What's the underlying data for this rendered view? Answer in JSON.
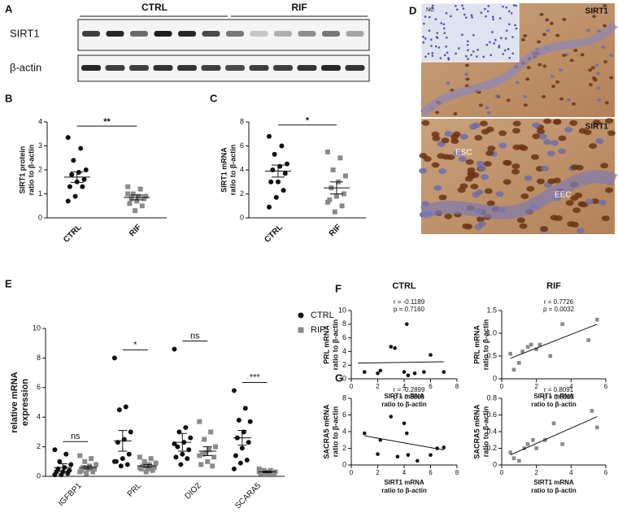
{
  "panels": [
    "A",
    "B",
    "C",
    "D",
    "E",
    "F",
    "G"
  ],
  "blot": {
    "groups": [
      "CTRL",
      "RIF"
    ],
    "rows": [
      "SIRT1",
      "β-actin"
    ]
  },
  "histology": {
    "top": {
      "inset": "NC",
      "label": "SIRT1"
    },
    "bottom": {
      "label": "SIRT1",
      "annotations": [
        "ESC",
        "EEC"
      ]
    }
  },
  "chart_data": [
    {
      "type": "dotplot",
      "ylabel": [
        "SIRT1 protein",
        "ratio to β-actin"
      ],
      "categories": [
        "CTRL",
        "RIF"
      ],
      "colors": [
        "#111111",
        "#8a8a8a"
      ],
      "markers": [
        "circle",
        "square"
      ],
      "values": [
        [
          3.35,
          2.9,
          2.4,
          2.0,
          1.9,
          1.8,
          1.6,
          1.5,
          1.3,
          1.3,
          0.9,
          0.7
        ],
        [
          1.3,
          1.2,
          1.0,
          0.9,
          0.9,
          0.8,
          0.8,
          0.7,
          0.6,
          0.5,
          0.3,
          1.0
        ]
      ],
      "mean": [
        1.7,
        0.85
      ],
      "sem": [
        0.22,
        0.1
      ],
      "significance": "**",
      "ylim": [
        0,
        4
      ],
      "yticks": [
        0,
        1,
        2,
        3,
        4
      ]
    },
    {
      "type": "dotplot",
      "ylabel": [
        "SIRT1 mRNA",
        "ratio to β-actin"
      ],
      "categories": [
        "CTRL",
        "RIF"
      ],
      "colors": [
        "#111111",
        "#8a8a8a"
      ],
      "markers": [
        "circle",
        "square"
      ],
      "values": [
        [
          6.8,
          6.0,
          5.3,
          4.5,
          4.3,
          4.0,
          3.7,
          3.0,
          3.0,
          2.3,
          1.7,
          0.9
        ],
        [
          5.5,
          5.0,
          4.0,
          3.5,
          3.0,
          2.5,
          2.0,
          1.8,
          1.5,
          1.0,
          0.5,
          1.3
        ]
      ],
      "mean": [
        3.9,
        2.5
      ],
      "sem": [
        0.5,
        0.5
      ],
      "significance": "*",
      "ylim": [
        0,
        8
      ],
      "yticks": [
        0,
        2,
        4,
        6,
        8
      ]
    },
    {
      "type": "grouped_dotplot",
      "ylabel": [
        "relative mRNA",
        "expression"
      ],
      "categories": [
        "IGFBP1",
        "PRL",
        "DIO2",
        "SCARA5"
      ],
      "significance": [
        "ns",
        "*",
        "ns",
        "***"
      ],
      "legend": "right",
      "series": [
        {
          "name": "CTRL",
          "color": "#111111",
          "marker": "circle",
          "values": [
            [
              1.8,
              1.5,
              1.0,
              0.8,
              0.6,
              0.5,
              0.4,
              0.3,
              0.3,
              0.2,
              0.1,
              0.1
            ],
            [
              8.0,
              4.7,
              4.5,
              3.0,
              2.5,
              2.3,
              1.5,
              1.2,
              1.0,
              0.8,
              0.7,
              1.0
            ],
            [
              8.6,
              3.3,
              3.0,
              2.6,
              2.3,
              2.0,
              1.8,
              1.5,
              1.3,
              1.2,
              0.8,
              2.2
            ],
            [
              5.8,
              4.6,
              3.8,
              3.7,
              3.0,
              2.6,
              2.3,
              1.9,
              1.4,
              1.1,
              0.9,
              0.5
            ]
          ],
          "mean": [
            0.6,
            2.4,
            2.3,
            2.6
          ],
          "sem": [
            0.25,
            0.7,
            0.6,
            0.5
          ]
        },
        {
          "name": "RIF",
          "color": "#8a8a8a",
          "marker": "square",
          "values": [
            [
              1.4,
              1.2,
              1.0,
              0.8,
              0.7,
              0.6,
              0.5,
              0.5,
              0.4,
              0.3,
              0.2,
              0.3
            ],
            [
              1.3,
              1.2,
              1.0,
              0.9,
              0.8,
              0.7,
              0.6,
              0.5,
              0.5,
              0.4,
              0.3,
              0.6
            ],
            [
              3.7,
              3.0,
              2.5,
              2.0,
              1.8,
              1.5,
              1.3,
              1.0,
              0.8,
              0.7,
              1.6,
              1.4
            ],
            [
              0.5,
              0.4,
              0.4,
              0.3,
              0.3,
              0.3,
              0.2,
              0.2,
              0.2,
              0.1,
              0.1,
              0.3
            ]
          ],
          "mean": [
            0.6,
            0.7,
            1.7,
            0.3
          ],
          "sem": [
            0.1,
            0.1,
            0.3,
            0.05
          ]
        }
      ],
      "ylim": [
        0,
        10
      ],
      "yticks": [
        0,
        2,
        4,
        6,
        8,
        10
      ]
    },
    {
      "type": "scatter",
      "title": "CTRL",
      "xlabel": [
        "SIRT1 mRNA",
        "ratio to β-actin"
      ],
      "ylabel": [
        "PRL mRNA",
        "ratio to β-actin"
      ],
      "annotations": [
        "r = -0.1189",
        "p = 0.7160"
      ],
      "color": "#111111",
      "marker": "circle",
      "x": [
        1,
        2,
        2.2,
        3,
        3.3,
        4,
        4.2,
        4.3,
        4.8,
        5.5,
        6,
        7
      ],
      "values": [
        1,
        0.8,
        1.2,
        4.7,
        4.5,
        1,
        8,
        0.5,
        0.8,
        1,
        3.5,
        1
      ],
      "trendline": {
        "x": [
          0.5,
          7
        ],
        "y": [
          2.3,
          2.5
        ]
      },
      "xlim": [
        0,
        8
      ],
      "xticks": [
        0,
        2,
        4,
        6,
        8
      ],
      "ylim": [
        0,
        10
      ],
      "yticks": [
        0,
        2,
        4,
        6,
        8,
        10
      ]
    },
    {
      "type": "scatter",
      "title": "RIF",
      "xlabel": [
        "SIRT1 mRNA",
        "ratio to β-actin"
      ],
      "ylabel": [
        "PRL mRNA",
        "ratio to β-actin"
      ],
      "annotations": [
        "r = 0.7726",
        "p = 0.0032"
      ],
      "color": "#8a8a8a",
      "marker": "square",
      "x": [
        0.5,
        0.7,
        1,
        1.2,
        1.5,
        1.7,
        2,
        2.2,
        2.8,
        3.5,
        5,
        5.5
      ],
      "values": [
        0.55,
        0.2,
        0.35,
        0.6,
        0.7,
        0.75,
        0.65,
        0.75,
        0.5,
        1.2,
        0.85,
        1.3
      ],
      "trendline": {
        "x": [
          0.5,
          5.5
        ],
        "y": [
          0.45,
          1.2
        ]
      },
      "xlim": [
        0,
        6
      ],
      "xticks": [
        0,
        2,
        4,
        6
      ],
      "ylim": [
        0,
        1.5
      ],
      "yticks": [
        0,
        0.5,
        {
          "value": 1,
          "label": "1.0"
        },
        1.5
      ]
    },
    {
      "type": "scatter",
      "xlabel": [
        "SIRT1 mRNA",
        "ratio to β-actin"
      ],
      "ylabel": [
        "SACRA5 mRNA",
        "ratio to β-actin"
      ],
      "annotations": [
        "r = -0.2899",
        "p = 0.3608"
      ],
      "color": "#111111",
      "marker": "circle",
      "x": [
        1,
        2,
        2.2,
        3,
        3.5,
        4,
        4.2,
        4.3,
        5,
        6,
        6.5,
        7
      ],
      "values": [
        3.8,
        1.3,
        3,
        5.8,
        1,
        5,
        3.8,
        1.2,
        0.5,
        1.2,
        2,
        2.1
      ],
      "trendline": {
        "x": [
          1,
          7
        ],
        "y": [
          3.5,
          1.8
        ]
      },
      "xlim": [
        0,
        8
      ],
      "xticks": [
        0,
        2,
        4,
        6,
        8
      ],
      "ylim": [
        0,
        8
      ],
      "yticks": [
        0,
        2,
        4,
        6,
        8
      ]
    },
    {
      "type": "scatter",
      "xlabel": [
        "SIRT1 mRNA",
        "ratio to β-actin"
      ],
      "ylabel": [
        "SACRA5 mRNA",
        "ratio to β-actin"
      ],
      "annotations": [
        "r = 0.8091",
        "p = 0.0022"
      ],
      "color": "#8a8a8a",
      "marker": "square",
      "x": [
        0.5,
        0.7,
        1,
        1.3,
        1.5,
        1.8,
        2,
        2.5,
        3,
        3.5,
        5.2,
        5.5
      ],
      "values": [
        0.15,
        0.08,
        0.05,
        0.2,
        0.25,
        0.3,
        0.2,
        0.3,
        0.5,
        0.25,
        0.65,
        0.45
      ],
      "trendline": {
        "x": [
          0.5,
          5.5
        ],
        "y": [
          0.12,
          0.58
        ]
      },
      "xlim": [
        0,
        6
      ],
      "xticks": [
        0,
        2,
        4,
        6
      ],
      "ylim": [
        0,
        0.8
      ],
      "yticks": [
        0,
        0.2,
        0.4,
        0.6,
        0.8
      ]
    }
  ]
}
